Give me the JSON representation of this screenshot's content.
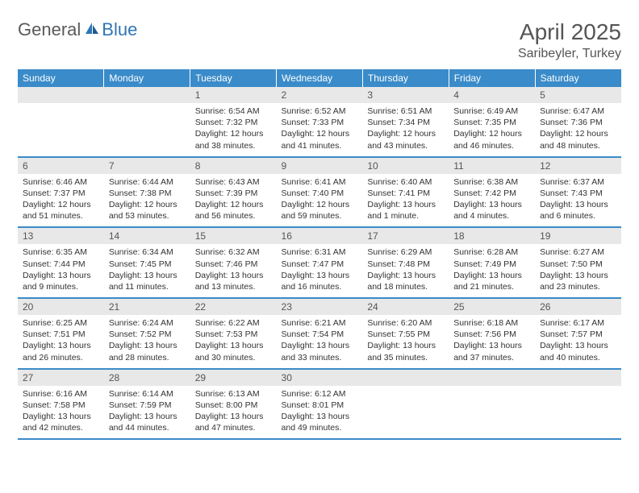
{
  "logo": {
    "part1": "General",
    "part2": "Blue"
  },
  "title": "April 2025",
  "location": "Saribeyler, Turkey",
  "colors": {
    "header_bg": "#3a8bc9",
    "header_text": "#ffffff",
    "daynum_bg": "#e8e8e8",
    "text": "#333333",
    "logo_gray": "#5a5a5a",
    "logo_blue": "#2e75b6"
  },
  "day_names": [
    "Sunday",
    "Monday",
    "Tuesday",
    "Wednesday",
    "Thursday",
    "Friday",
    "Saturday"
  ],
  "weeks": [
    [
      null,
      null,
      {
        "n": "1",
        "sr": "Sunrise: 6:54 AM",
        "ss": "Sunset: 7:32 PM",
        "dl": "Daylight: 12 hours and 38 minutes."
      },
      {
        "n": "2",
        "sr": "Sunrise: 6:52 AM",
        "ss": "Sunset: 7:33 PM",
        "dl": "Daylight: 12 hours and 41 minutes."
      },
      {
        "n": "3",
        "sr": "Sunrise: 6:51 AM",
        "ss": "Sunset: 7:34 PM",
        "dl": "Daylight: 12 hours and 43 minutes."
      },
      {
        "n": "4",
        "sr": "Sunrise: 6:49 AM",
        "ss": "Sunset: 7:35 PM",
        "dl": "Daylight: 12 hours and 46 minutes."
      },
      {
        "n": "5",
        "sr": "Sunrise: 6:47 AM",
        "ss": "Sunset: 7:36 PM",
        "dl": "Daylight: 12 hours and 48 minutes."
      }
    ],
    [
      {
        "n": "6",
        "sr": "Sunrise: 6:46 AM",
        "ss": "Sunset: 7:37 PM",
        "dl": "Daylight: 12 hours and 51 minutes."
      },
      {
        "n": "7",
        "sr": "Sunrise: 6:44 AM",
        "ss": "Sunset: 7:38 PM",
        "dl": "Daylight: 12 hours and 53 minutes."
      },
      {
        "n": "8",
        "sr": "Sunrise: 6:43 AM",
        "ss": "Sunset: 7:39 PM",
        "dl": "Daylight: 12 hours and 56 minutes."
      },
      {
        "n": "9",
        "sr": "Sunrise: 6:41 AM",
        "ss": "Sunset: 7:40 PM",
        "dl": "Daylight: 12 hours and 59 minutes."
      },
      {
        "n": "10",
        "sr": "Sunrise: 6:40 AM",
        "ss": "Sunset: 7:41 PM",
        "dl": "Daylight: 13 hours and 1 minute."
      },
      {
        "n": "11",
        "sr": "Sunrise: 6:38 AM",
        "ss": "Sunset: 7:42 PM",
        "dl": "Daylight: 13 hours and 4 minutes."
      },
      {
        "n": "12",
        "sr": "Sunrise: 6:37 AM",
        "ss": "Sunset: 7:43 PM",
        "dl": "Daylight: 13 hours and 6 minutes."
      }
    ],
    [
      {
        "n": "13",
        "sr": "Sunrise: 6:35 AM",
        "ss": "Sunset: 7:44 PM",
        "dl": "Daylight: 13 hours and 9 minutes."
      },
      {
        "n": "14",
        "sr": "Sunrise: 6:34 AM",
        "ss": "Sunset: 7:45 PM",
        "dl": "Daylight: 13 hours and 11 minutes."
      },
      {
        "n": "15",
        "sr": "Sunrise: 6:32 AM",
        "ss": "Sunset: 7:46 PM",
        "dl": "Daylight: 13 hours and 13 minutes."
      },
      {
        "n": "16",
        "sr": "Sunrise: 6:31 AM",
        "ss": "Sunset: 7:47 PM",
        "dl": "Daylight: 13 hours and 16 minutes."
      },
      {
        "n": "17",
        "sr": "Sunrise: 6:29 AM",
        "ss": "Sunset: 7:48 PM",
        "dl": "Daylight: 13 hours and 18 minutes."
      },
      {
        "n": "18",
        "sr": "Sunrise: 6:28 AM",
        "ss": "Sunset: 7:49 PM",
        "dl": "Daylight: 13 hours and 21 minutes."
      },
      {
        "n": "19",
        "sr": "Sunrise: 6:27 AM",
        "ss": "Sunset: 7:50 PM",
        "dl": "Daylight: 13 hours and 23 minutes."
      }
    ],
    [
      {
        "n": "20",
        "sr": "Sunrise: 6:25 AM",
        "ss": "Sunset: 7:51 PM",
        "dl": "Daylight: 13 hours and 26 minutes."
      },
      {
        "n": "21",
        "sr": "Sunrise: 6:24 AM",
        "ss": "Sunset: 7:52 PM",
        "dl": "Daylight: 13 hours and 28 minutes."
      },
      {
        "n": "22",
        "sr": "Sunrise: 6:22 AM",
        "ss": "Sunset: 7:53 PM",
        "dl": "Daylight: 13 hours and 30 minutes."
      },
      {
        "n": "23",
        "sr": "Sunrise: 6:21 AM",
        "ss": "Sunset: 7:54 PM",
        "dl": "Daylight: 13 hours and 33 minutes."
      },
      {
        "n": "24",
        "sr": "Sunrise: 6:20 AM",
        "ss": "Sunset: 7:55 PM",
        "dl": "Daylight: 13 hours and 35 minutes."
      },
      {
        "n": "25",
        "sr": "Sunrise: 6:18 AM",
        "ss": "Sunset: 7:56 PM",
        "dl": "Daylight: 13 hours and 37 minutes."
      },
      {
        "n": "26",
        "sr": "Sunrise: 6:17 AM",
        "ss": "Sunset: 7:57 PM",
        "dl": "Daylight: 13 hours and 40 minutes."
      }
    ],
    [
      {
        "n": "27",
        "sr": "Sunrise: 6:16 AM",
        "ss": "Sunset: 7:58 PM",
        "dl": "Daylight: 13 hours and 42 minutes."
      },
      {
        "n": "28",
        "sr": "Sunrise: 6:14 AM",
        "ss": "Sunset: 7:59 PM",
        "dl": "Daylight: 13 hours and 44 minutes."
      },
      {
        "n": "29",
        "sr": "Sunrise: 6:13 AM",
        "ss": "Sunset: 8:00 PM",
        "dl": "Daylight: 13 hours and 47 minutes."
      },
      {
        "n": "30",
        "sr": "Sunrise: 6:12 AM",
        "ss": "Sunset: 8:01 PM",
        "dl": "Daylight: 13 hours and 49 minutes."
      },
      null,
      null,
      null
    ]
  ]
}
